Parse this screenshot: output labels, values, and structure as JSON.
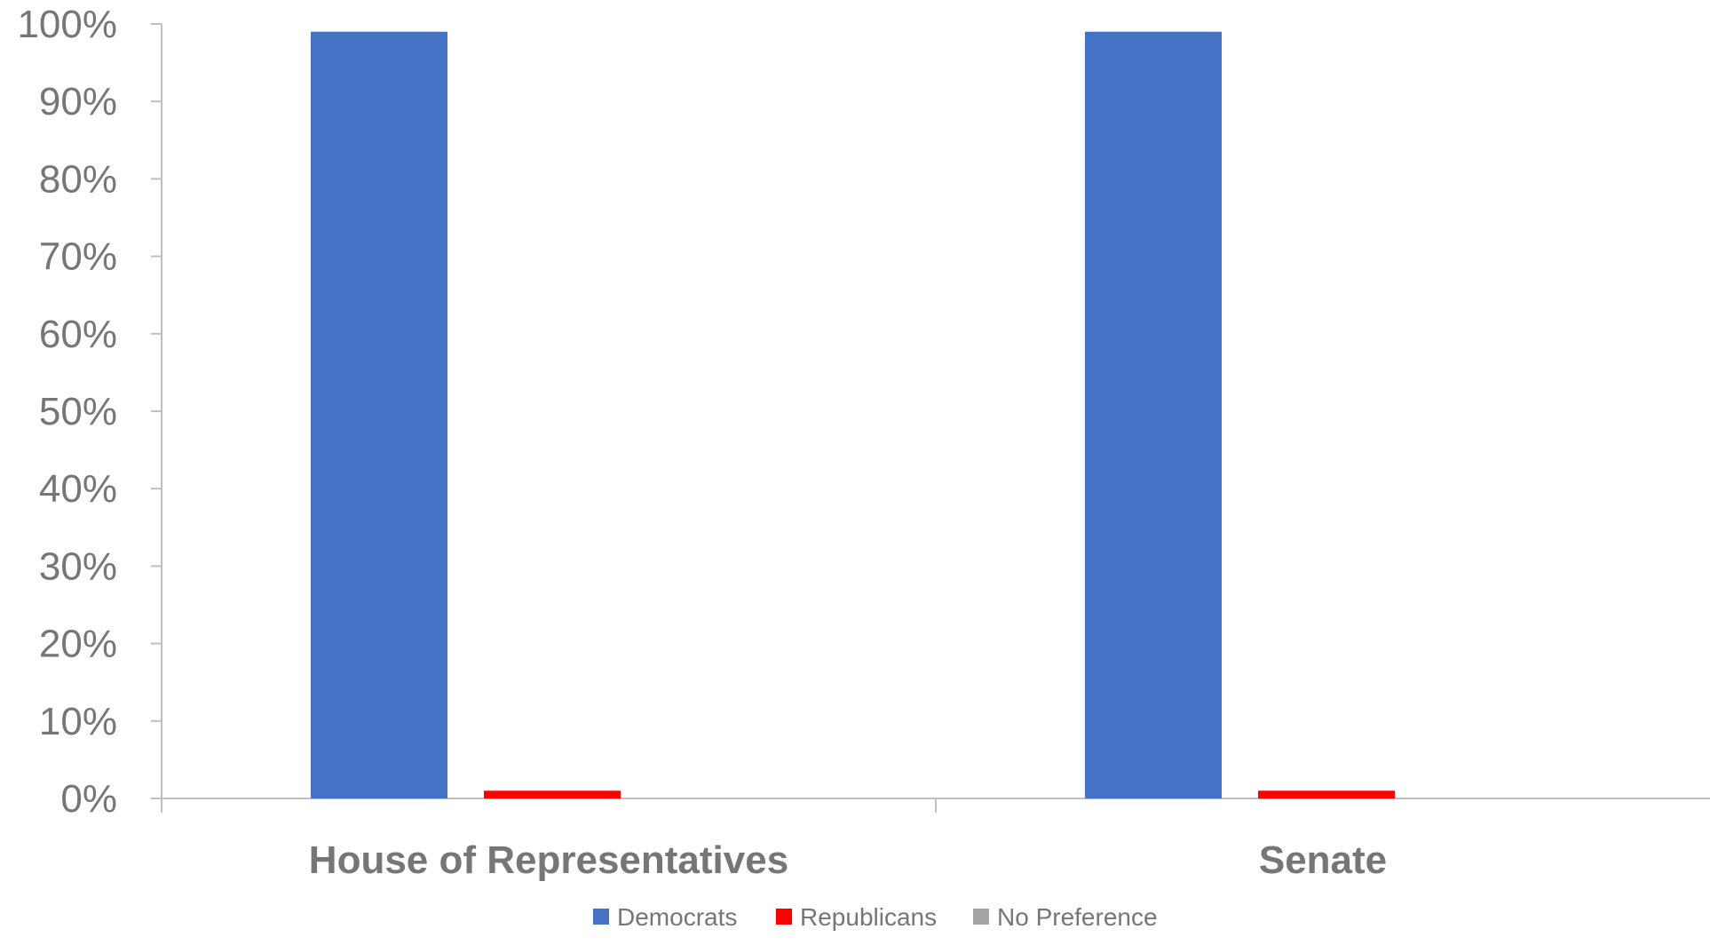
{
  "chart_data": {
    "type": "bar",
    "title": "",
    "xlabel": "",
    "ylabel": "",
    "categories": [
      "House of Representatives",
      "Senate"
    ],
    "series": [
      {
        "name": "Democrats",
        "values": [
          99,
          99
        ],
        "color": "#4472C4"
      },
      {
        "name": "Republicans",
        "values": [
          1,
          1
        ],
        "color": "#FF0000"
      },
      {
        "name": "No Preference",
        "values": [
          0,
          0
        ],
        "color": "#A5A5A5"
      }
    ],
    "ylim": [
      0,
      100
    ],
    "yticks": [
      0,
      10,
      20,
      30,
      40,
      50,
      60,
      70,
      80,
      90,
      100
    ],
    "ytick_labels": [
      "0%",
      "10%",
      "20%",
      "30%",
      "40%",
      "50%",
      "60%",
      "70%",
      "80%",
      "90%",
      "100%"
    ],
    "grid": false,
    "legend_position": "bottom"
  }
}
